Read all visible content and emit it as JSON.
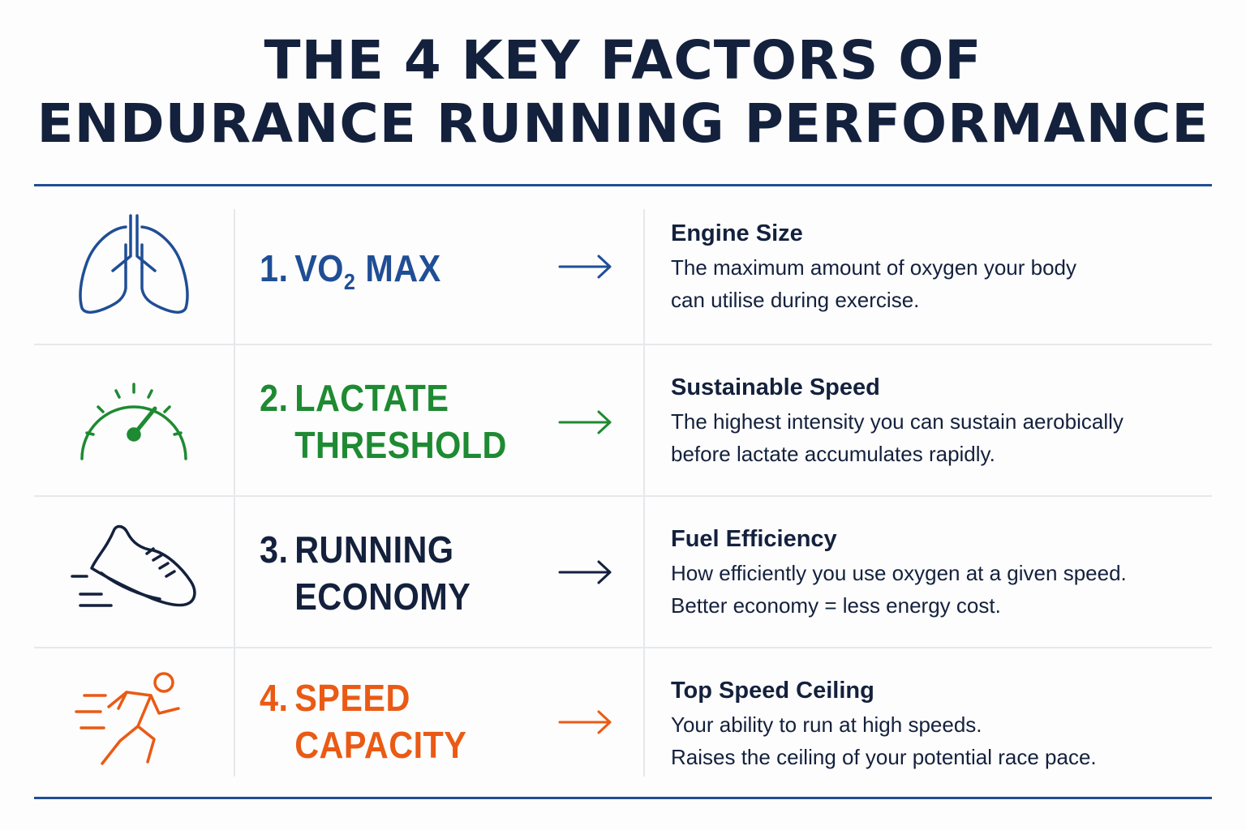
{
  "title": {
    "line1": "THE 4 KEY FACTORS OF",
    "line2": "ENDURANCE RUNNING PERFORMANCE"
  },
  "colors": {
    "blue": "#1f4e95",
    "green": "#1e8a32",
    "navy": "#14213d",
    "orange": "#ea5a14",
    "rule": "#1f4e95"
  },
  "factors": [
    {
      "icon": "lungs-icon",
      "number": "1.",
      "label_pre": "VO",
      "label_sub": "2",
      "label_post": " MAX",
      "heading": "Engine Size",
      "desc_line1": "The maximum amount of oxygen your body",
      "desc_line2": "can utilise during exercise."
    },
    {
      "icon": "speedometer-icon",
      "number": "2.",
      "label_line1": "LACTATE",
      "label_line2": "THRESHOLD",
      "heading": "Sustainable Speed",
      "desc_line1": "The highest intensity you can sustain aerobically",
      "desc_line2": "before lactate accumulates rapidly."
    },
    {
      "icon": "running-shoe-icon",
      "number": "3.",
      "label_line1": "RUNNING",
      "label_line2": "ECONOMY",
      "heading": "Fuel Efficiency",
      "desc_line1": "How efficiently you use oxygen at a given speed.",
      "desc_line2": "Better economy = less energy cost."
    },
    {
      "icon": "sprinter-icon",
      "number": "4.",
      "label_line1": "SPEED",
      "label_line2": "CAPACITY",
      "heading": "Top Speed Ceiling",
      "desc_line1": "Your ability to run at high speeds.",
      "desc_line2": "Raises the ceiling of your potential race pace."
    }
  ]
}
